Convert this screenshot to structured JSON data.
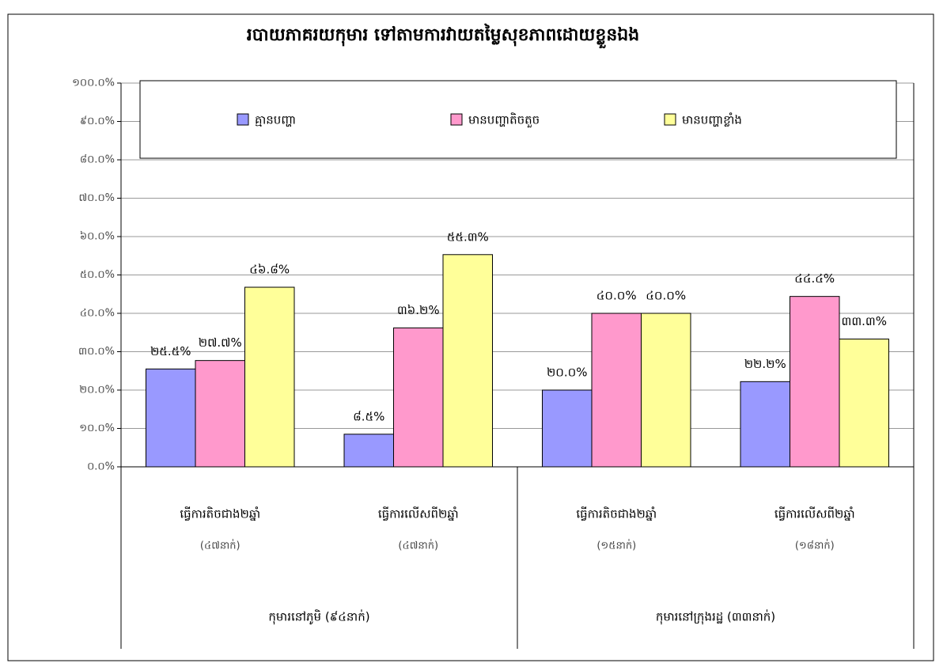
{
  "chart_data": {
    "type": "bar",
    "title": "របាយភាគរយកុមារ ទៅតាមការវាយតម្លៃសុខភាពដោយខ្លួនឯង",
    "categories": [
      "ធ្វើការតិចជាង២ឆ្នាំ",
      "ធ្វើការលើសពី២ឆ្នាំ",
      "ធ្វើការតិចជាង២ឆ្នាំ",
      "ធ្វើការលើសពី២ឆ្នាំ"
    ],
    "category_counts": [
      "(៤៧នាក់)",
      "(៤៧នាក់)",
      "(១៥នាក់)",
      "(១៨នាក់)"
    ],
    "groups": [
      "កុមារនៅភូមិ (៩៤នាក់)",
      "កុមារនៅក្រុងរដ្ឋ (៣៣នាក់)"
    ],
    "series": [
      {
        "name": "គ្មានបញ្ហា",
        "color": "#9999ff",
        "values": [
          25.5,
          8.5,
          20.0,
          22.2
        ],
        "value_labels": [
          "២៥.៥%",
          "៨.៥%",
          "២០.០%",
          "២២.២%"
        ]
      },
      {
        "name": "មានបញ្ហាតិចតួច",
        "color": "#ff99cc",
        "values": [
          27.7,
          36.2,
          40.0,
          44.4
        ],
        "value_labels": [
          "២៧.៧%",
          "៣៦.២%",
          "៤០.០%",
          "៤៤.៤%"
        ]
      },
      {
        "name": "មានបញ្ហាខ្លាំង",
        "color": "#ffff99",
        "values": [
          46.8,
          55.3,
          40.0,
          33.3
        ],
        "value_labels": [
          "៤៦.៨%",
          "៥៥.៣%",
          "៤០.០%",
          "៣៣.៣%"
        ]
      }
    ],
    "ylim": [
      0,
      100
    ],
    "yticks": [
      {
        "value": 0,
        "label": "០.០%"
      },
      {
        "value": 10,
        "label": "១០.០%"
      },
      {
        "value": 20,
        "label": "២០.០%"
      },
      {
        "value": 30,
        "label": "៣០.០%"
      },
      {
        "value": 40,
        "label": "៤០.០%"
      },
      {
        "value": 50,
        "label": "៥០.០%"
      },
      {
        "value": 60,
        "label": "៦០.០%"
      },
      {
        "value": 70,
        "label": "៧០.០%"
      },
      {
        "value": 80,
        "label": "៨០.០%"
      },
      {
        "value": 90,
        "label": "៩០.០%"
      },
      {
        "value": 100,
        "label": "១០០.០%"
      }
    ],
    "grid": true
  }
}
